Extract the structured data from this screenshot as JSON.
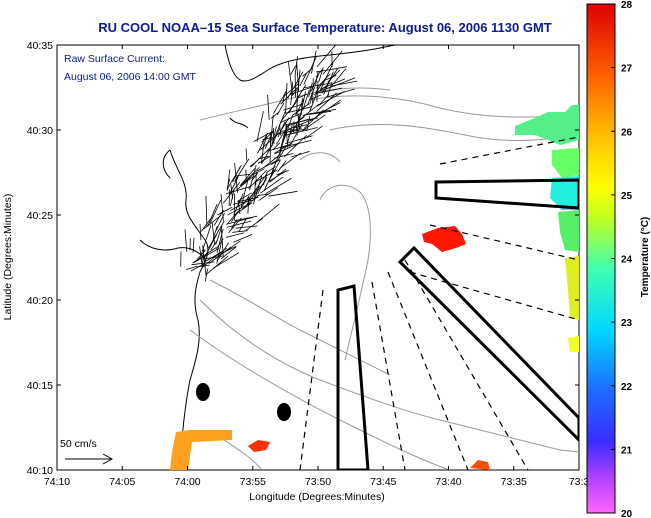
{
  "chart_data": {
    "type": "heatmap",
    "title": "RU COOL  NOAA–15  Sea Surface Temperature:  August 06, 2006 1130 GMT",
    "annotation_lines": [
      "Raw Surface Current:",
      "August 06, 2006 14:00 GMT"
    ],
    "xlabel": "Longitude (Degrees:Minutes)",
    "ylabel": "Latitude (Degrees:Minutes)",
    "x_tick_labels": [
      "74:10",
      "74:05",
      "74:00",
      "73:55",
      "73:50",
      "73:45",
      "73:40",
      "73:35",
      "73:3"
    ],
    "y_tick_labels": [
      "40:10",
      "40:15",
      "40:20",
      "40:25",
      "40:30",
      "40:35"
    ],
    "x_range_minutes_west": [
      250,
      210
    ],
    "y_range_minutes_north": [
      2410,
      2435
    ],
    "colorbar": {
      "label": "Temperature (°C)",
      "range": [
        20,
        28
      ],
      "tick_labels": [
        "20",
        "21",
        "22",
        "23",
        "24",
        "25",
        "26",
        "27",
        "28"
      ]
    },
    "scale_arrow_label": "50 cm/s",
    "grid": false
  }
}
